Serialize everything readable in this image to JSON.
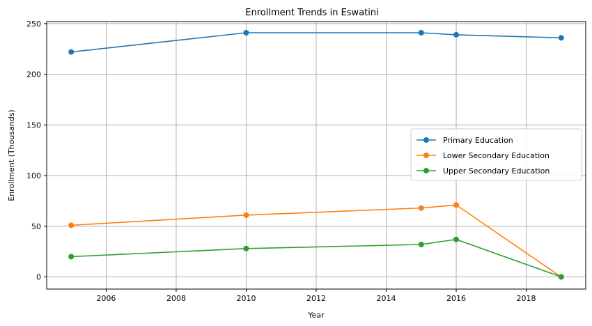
{
  "chart_data": {
    "type": "line",
    "title": "Enrollment Trends in Eswatini",
    "xlabel": "Year",
    "ylabel": "Enrollment (Thousands)",
    "xlim": [
      2004.3,
      2019.7
    ],
    "ylim": [
      -12,
      252
    ],
    "x_ticks": [
      2006,
      2008,
      2010,
      2012,
      2014,
      2016,
      2018
    ],
    "y_ticks": [
      0,
      50,
      100,
      150,
      200,
      250
    ],
    "grid": true,
    "legend_position": "center-right",
    "series": [
      {
        "name": "Primary Education",
        "color": "#1f77b4",
        "x": [
          2005,
          2010,
          2015,
          2016,
          2019
        ],
        "y": [
          222,
          241,
          241,
          239,
          236
        ]
      },
      {
        "name": "Lower Secondary Education",
        "color": "#ff7f0e",
        "x": [
          2005,
          2010,
          2015,
          2016,
          2019
        ],
        "y": [
          51,
          61,
          68,
          71,
          0
        ]
      },
      {
        "name": "Upper Secondary Education",
        "color": "#2ca02c",
        "x": [
          2005,
          2010,
          2015,
          2016,
          2019
        ],
        "y": [
          20,
          28,
          32,
          37,
          0
        ]
      }
    ]
  }
}
